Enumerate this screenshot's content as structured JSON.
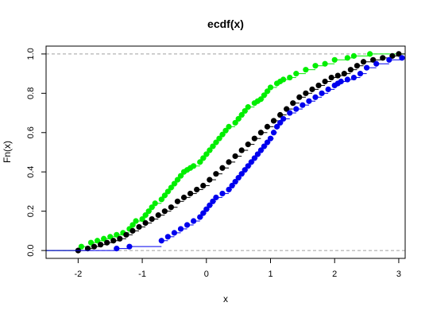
{
  "chart_data": {
    "type": "line",
    "title": "ecdf(x)",
    "xlabel": "x",
    "ylabel": "Fn(x)",
    "xlim": [
      -2.5,
      3.1
    ],
    "ylim": [
      -0.04,
      1.04
    ],
    "x_ticks": [
      "-2",
      "-1",
      "0",
      "1",
      "2",
      "3"
    ],
    "x_tick_values": [
      -2,
      -1,
      0,
      1,
      2,
      3
    ],
    "y_ticks": [
      "0.0",
      "0.2",
      "0.4",
      "0.6",
      "0.8",
      "1.0"
    ],
    "y_tick_values": [
      0,
      0.2,
      0.4,
      0.6,
      0.8,
      1.0
    ],
    "reference_lines_y": [
      0,
      1
    ],
    "grid": false,
    "legend": "none",
    "series": [
      {
        "color": "#00ee00",
        "x": [
          -1.95,
          -1.8,
          -1.7,
          -1.6,
          -1.5,
          -1.4,
          -1.3,
          -1.2,
          -1.15,
          -1.1,
          -1.0,
          -0.95,
          -0.9,
          -0.85,
          -0.8,
          -0.7,
          -0.65,
          -0.6,
          -0.55,
          -0.5,
          -0.45,
          -0.4,
          -0.35,
          -0.3,
          -0.25,
          -0.2,
          -0.1,
          -0.05,
          0.0,
          0.05,
          0.1,
          0.15,
          0.2,
          0.25,
          0.3,
          0.35,
          0.45,
          0.5,
          0.55,
          0.6,
          0.65,
          0.75,
          0.8,
          0.85,
          0.9,
          0.95,
          1.0,
          1.1,
          1.15,
          1.2,
          1.3,
          1.4,
          1.55,
          1.7,
          1.85,
          2.0,
          2.2,
          2.3,
          2.55
        ],
        "y": [
          0.02,
          0.04,
          0.05,
          0.06,
          0.07,
          0.08,
          0.09,
          0.11,
          0.13,
          0.15,
          0.16,
          0.18,
          0.2,
          0.22,
          0.24,
          0.26,
          0.28,
          0.3,
          0.32,
          0.34,
          0.36,
          0.38,
          0.4,
          0.41,
          0.42,
          0.43,
          0.45,
          0.47,
          0.49,
          0.51,
          0.53,
          0.55,
          0.57,
          0.59,
          0.61,
          0.63,
          0.65,
          0.67,
          0.69,
          0.71,
          0.73,
          0.75,
          0.76,
          0.77,
          0.79,
          0.81,
          0.83,
          0.85,
          0.86,
          0.87,
          0.88,
          0.9,
          0.92,
          0.94,
          0.95,
          0.97,
          0.98,
          0.99,
          1.0
        ]
      },
      {
        "color": "#000000",
        "x": [
          -2.0,
          -1.85,
          -1.75,
          -1.65,
          -1.55,
          -1.45,
          -1.35,
          -1.25,
          -1.15,
          -1.05,
          -0.95,
          -0.85,
          -0.75,
          -0.65,
          -0.55,
          -0.45,
          -0.35,
          -0.25,
          -0.15,
          -0.05,
          0.05,
          0.15,
          0.25,
          0.35,
          0.45,
          0.55,
          0.65,
          0.75,
          0.85,
          0.95,
          1.05,
          1.15,
          1.25,
          1.35,
          1.45,
          1.55,
          1.65,
          1.75,
          1.85,
          1.95,
          2.05,
          2.15,
          2.25,
          2.35,
          2.45,
          2.6,
          2.75,
          2.9,
          3.0
        ],
        "y": [
          0.0,
          0.01,
          0.02,
          0.03,
          0.04,
          0.05,
          0.06,
          0.08,
          0.1,
          0.12,
          0.14,
          0.16,
          0.18,
          0.2,
          0.22,
          0.25,
          0.27,
          0.29,
          0.31,
          0.33,
          0.36,
          0.39,
          0.42,
          0.45,
          0.48,
          0.51,
          0.54,
          0.57,
          0.6,
          0.63,
          0.66,
          0.69,
          0.72,
          0.75,
          0.78,
          0.8,
          0.82,
          0.84,
          0.86,
          0.88,
          0.89,
          0.9,
          0.92,
          0.94,
          0.96,
          0.97,
          0.98,
          0.99,
          1.0
        ]
      },
      {
        "color": "#0000ee",
        "x": [
          -1.4,
          -1.2,
          -0.7,
          -0.6,
          -0.5,
          -0.4,
          -0.3,
          -0.2,
          -0.1,
          -0.05,
          0.0,
          0.05,
          0.1,
          0.15,
          0.25,
          0.35,
          0.4,
          0.45,
          0.5,
          0.55,
          0.6,
          0.65,
          0.7,
          0.75,
          0.8,
          0.85,
          0.9,
          0.95,
          1.0,
          1.05,
          1.1,
          1.15,
          1.2,
          1.3,
          1.4,
          1.5,
          1.6,
          1.7,
          1.8,
          1.9,
          2.0,
          2.05,
          2.1,
          2.2,
          2.3,
          2.4,
          2.5,
          2.65,
          2.85,
          3.05
        ],
        "y": [
          0.01,
          0.02,
          0.05,
          0.07,
          0.09,
          0.11,
          0.13,
          0.15,
          0.17,
          0.19,
          0.21,
          0.23,
          0.25,
          0.27,
          0.29,
          0.31,
          0.33,
          0.35,
          0.37,
          0.39,
          0.41,
          0.43,
          0.45,
          0.47,
          0.49,
          0.51,
          0.53,
          0.55,
          0.57,
          0.6,
          0.63,
          0.65,
          0.67,
          0.7,
          0.72,
          0.74,
          0.76,
          0.78,
          0.8,
          0.82,
          0.84,
          0.85,
          0.86,
          0.87,
          0.88,
          0.9,
          0.93,
          0.95,
          0.97,
          0.98
        ]
      }
    ]
  }
}
